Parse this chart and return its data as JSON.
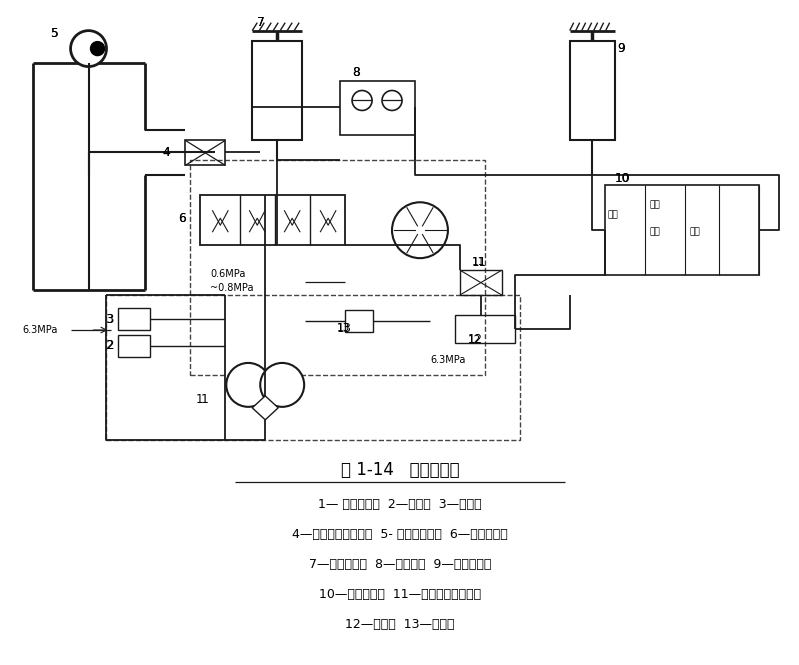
{
  "fig_label": "图 1-14   液压原理图",
  "legend_lines": [
    "1— 双联叶片泵  2—安全阀  3—背压阀",
    "4—分路式流量调节阀  5- 摆线液压马达  6—往复方向阀",
    "7—往复液压缸  8—单向阀组  9—升降液压缸",
    "10—升降换向阀  11—分路式流量调节阀",
    "12—电磁阀  13—安全阀"
  ],
  "bg_color": "#ffffff",
  "line_color": "#1a1a1a",
  "dashed_color": "#444444"
}
